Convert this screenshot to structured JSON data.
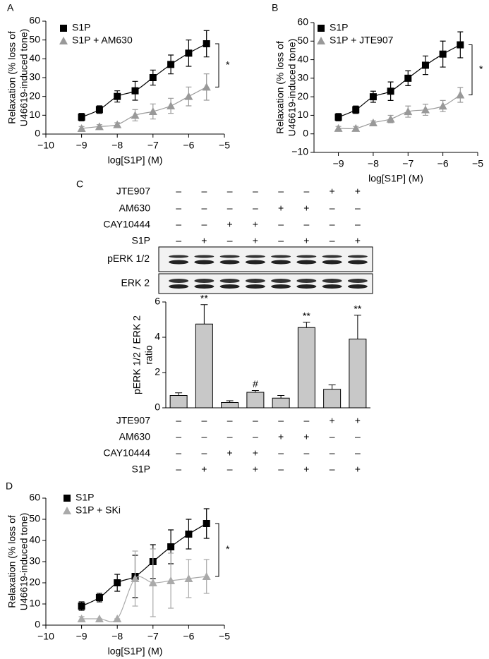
{
  "chart_data": [
    {
      "type": "line",
      "panel": "A",
      "xlabel": "log[S1P] (M)",
      "ylabel": [
        "Relaxation (% loss of",
        "U46619-induced tone)"
      ],
      "x": [
        -9,
        -8.5,
        -8,
        -7.5,
        -7,
        -6.5,
        -6,
        -5.5
      ],
      "xlim": [
        -10,
        -5
      ],
      "xticks": [
        {
          "value": -10,
          "label": "−10"
        },
        {
          "value": -9,
          "label": "−9"
        },
        {
          "value": -8,
          "label": "−8"
        },
        {
          "value": -7,
          "label": "−7"
        },
        {
          "value": -6,
          "label": "−6"
        },
        {
          "value": -5,
          "label": "−5"
        }
      ],
      "ylim": [
        0,
        60
      ],
      "yticks": [
        0,
        10,
        20,
        30,
        40,
        50,
        60
      ],
      "annotation": "*",
      "series": [
        {
          "name": "S1P",
          "color": "#000000",
          "marker": "square",
          "values": [
            9,
            13,
            20,
            23,
            30,
            37,
            43,
            48
          ],
          "errors": [
            2,
            2,
            3,
            5,
            4,
            5,
            7,
            7
          ]
        },
        {
          "name": "S1P + AM630",
          "color": "#999999",
          "marker": "triangle",
          "values": [
            3,
            4,
            5,
            10,
            12,
            15,
            20,
            25
          ],
          "errors": [
            1,
            1,
            1,
            3,
            4,
            4,
            5,
            7
          ]
        }
      ]
    },
    {
      "type": "line",
      "panel": "B",
      "xlabel": "log[S1P] (M)",
      "ylabel": [
        "Relaxation (% loss of",
        "U46619-induced tone)"
      ],
      "x": [
        -9,
        -8.5,
        -8,
        -7.5,
        -7,
        -6.5,
        -6,
        -5.5
      ],
      "xlim": [
        -9.7,
        -5
      ],
      "xticks": [
        {
          "value": -9,
          "label": "−9"
        },
        {
          "value": -8,
          "label": "−8"
        },
        {
          "value": -7,
          "label": "−7"
        },
        {
          "value": -6,
          "label": "−6"
        },
        {
          "value": -5,
          "label": "−5"
        }
      ],
      "ylim": [
        -10,
        60
      ],
      "yticks": [
        {
          "value": -10,
          "label": "−10"
        },
        0,
        10,
        20,
        30,
        40,
        50,
        60
      ],
      "annotation": "*",
      "series": [
        {
          "name": "S1P",
          "color": "#000000",
          "marker": "square",
          "values": [
            9,
            13,
            20,
            23,
            30,
            37,
            43,
            48
          ],
          "errors": [
            2,
            2,
            3,
            5,
            4,
            5,
            7,
            7
          ]
        },
        {
          "name": "S1P + JTE907",
          "color": "#999999",
          "marker": "triangle",
          "values": [
            3,
            3,
            6,
            8,
            12,
            13,
            15,
            21
          ],
          "errors": [
            1,
            1,
            1,
            2,
            3,
            3,
            3,
            4
          ]
        }
      ]
    },
    {
      "type": "bar",
      "panel": "C",
      "ylabel": [
        "pERK 1/2 / ERK 2",
        "ratio"
      ],
      "categories": [
        null,
        null,
        null,
        null,
        null,
        null,
        null,
        null
      ],
      "values": [
        0.7,
        4.75,
        0.3,
        0.88,
        0.55,
        4.55,
        1.05,
        3.9
      ],
      "errors": [
        0.15,
        1.1,
        0.1,
        0.1,
        0.15,
        0.3,
        0.25,
        1.35
      ],
      "value_annotations": [
        null,
        "**",
        null,
        "#",
        null,
        "**",
        null,
        "**"
      ],
      "color": "#c8c8c8",
      "ylim": [
        0,
        6
      ],
      "yticks": [
        0,
        2,
        4,
        6
      ],
      "blot_labels": [
        "pERK 1/2",
        "ERK 2"
      ],
      "treatments": [
        {
          "name": "JTE907",
          "signs": [
            "–",
            "–",
            "–",
            "–",
            "–",
            "–",
            "+",
            "+"
          ]
        },
        {
          "name": "AM630",
          "signs": [
            "–",
            "–",
            "–",
            "–",
            "+",
            "+",
            "–",
            "–"
          ]
        },
        {
          "name": "CAY10444",
          "signs": [
            "–",
            "–",
            "+",
            "+",
            "–",
            "–",
            "–",
            "–"
          ]
        },
        {
          "name": "S1P",
          "signs": [
            "–",
            "+",
            "–",
            "+",
            "–",
            "+",
            "–",
            "+"
          ]
        }
      ]
    },
    {
      "type": "line",
      "panel": "D",
      "xlabel": "log[S1P] (M)",
      "ylabel": [
        "Relaxation (% loss of",
        "U46619-induced tone)"
      ],
      "x": [
        -9,
        -8.5,
        -8,
        -7.5,
        -7,
        -6.5,
        -6,
        -5.5
      ],
      "xlim": [
        -10,
        -5
      ],
      "xticks": [
        {
          "value": -10,
          "label": "−10"
        },
        {
          "value": -9,
          "label": "−9"
        },
        {
          "value": -8,
          "label": "−8"
        },
        {
          "value": -7,
          "label": "−7"
        },
        {
          "value": -6,
          "label": "−6"
        },
        {
          "value": -5,
          "label": "−5"
        }
      ],
      "ylim": [
        0,
        60
      ],
      "yticks": [
        0,
        10,
        20,
        30,
        40,
        50,
        60
      ],
      "annotation": "*",
      "series": [
        {
          "name": "S1P",
          "color": "#000000",
          "marker": "square",
          "values": [
            9,
            13,
            20,
            23,
            30,
            37,
            43,
            48
          ],
          "errors": [
            2,
            2,
            4,
            10,
            8,
            8,
            7,
            7
          ]
        },
        {
          "name": "S1P + SKi",
          "color": "#aaaaaa",
          "marker": "triangle",
          "values": [
            3,
            3,
            3,
            22,
            20,
            21,
            22,
            23
          ],
          "errors": [
            1,
            0,
            0,
            13,
            16,
            13,
            9,
            8
          ]
        }
      ]
    }
  ]
}
